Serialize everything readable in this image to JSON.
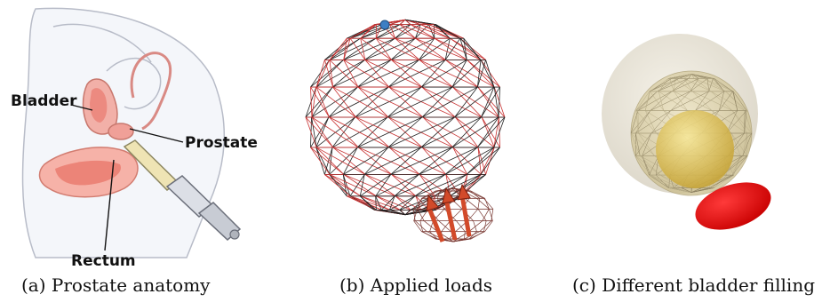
{
  "figure": {
    "panels": [
      {
        "caption": "(a) Prostate anatomy",
        "labels": {
          "bladder": "Bladder",
          "prostate": "Prostate",
          "rectum": "Rectum"
        }
      },
      {
        "caption": "(b) Applied loads"
      },
      {
        "caption": "(c) Different bladder filling"
      }
    ]
  },
  "colors": {
    "mesh_black": "#222222",
    "mesh_red": "#c83232",
    "load_arrow": "#d24a2a",
    "anatomy_pink": "#ec9a92",
    "bladder_yellow": "#e8cf70",
    "rectum_red": "#e01010"
  }
}
